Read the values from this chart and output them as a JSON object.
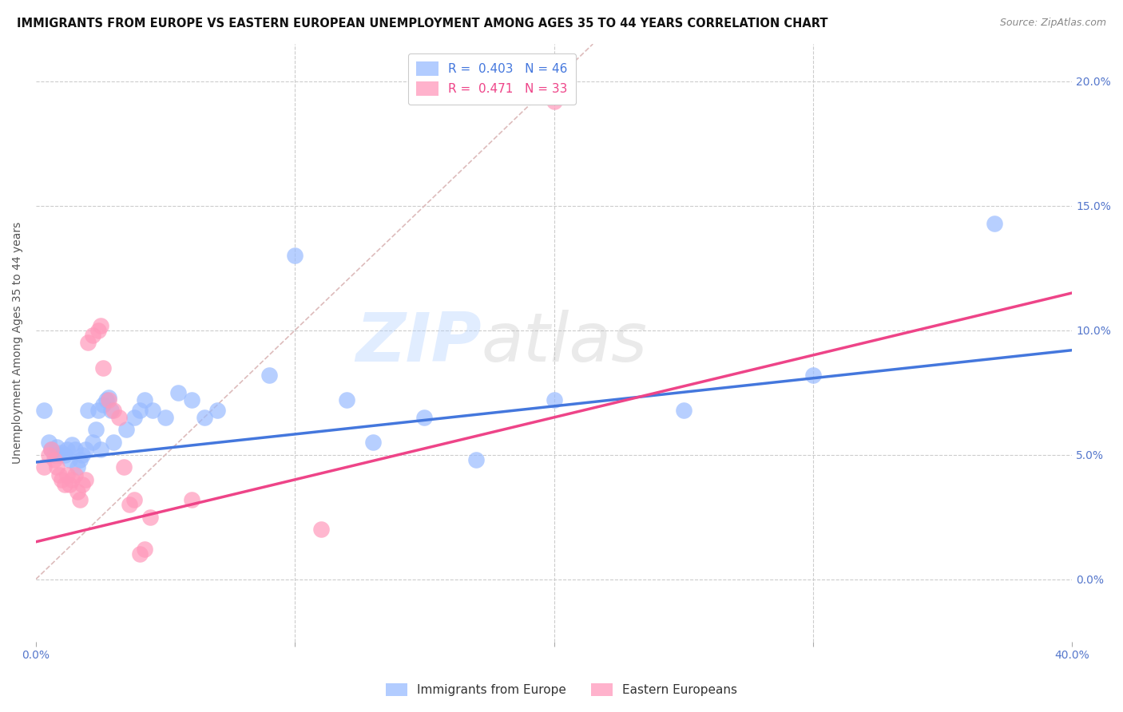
{
  "title": "IMMIGRANTS FROM EUROPE VS EASTERN EUROPEAN UNEMPLOYMENT AMONG AGES 35 TO 44 YEARS CORRELATION CHART",
  "source": "Source: ZipAtlas.com",
  "ylabel": "Unemployment Among Ages 35 to 44 years",
  "xlim": [
    0.0,
    0.4
  ],
  "ylim": [
    -0.025,
    0.215
  ],
  "yticks": [
    0.0,
    0.05,
    0.1,
    0.15,
    0.2
  ],
  "ytick_labels": [
    "0.0%",
    "5.0%",
    "10.0%",
    "15.0%",
    "20.0%"
  ],
  "xticks": [
    0.0,
    0.1,
    0.2,
    0.3,
    0.4
  ],
  "xtick_labels": [
    "0.0%",
    "",
    "",
    "",
    "40.0%"
  ],
  "blue_R": 0.403,
  "blue_N": 46,
  "pink_R": 0.471,
  "pink_N": 33,
  "blue_color": "#99BBFF",
  "pink_color": "#FF99BB",
  "blue_line_color": "#4477DD",
  "pink_line_color": "#EE4488",
  "blue_scatter": [
    [
      0.003,
      0.068
    ],
    [
      0.005,
      0.055
    ],
    [
      0.006,
      0.052
    ],
    [
      0.007,
      0.05
    ],
    [
      0.008,
      0.053
    ],
    [
      0.009,
      0.05
    ],
    [
      0.01,
      0.051
    ],
    [
      0.011,
      0.05
    ],
    [
      0.012,
      0.052
    ],
    [
      0.013,
      0.048
    ],
    [
      0.014,
      0.054
    ],
    [
      0.015,
      0.052
    ],
    [
      0.016,
      0.045
    ],
    [
      0.017,
      0.048
    ],
    [
      0.018,
      0.05
    ],
    [
      0.019,
      0.052
    ],
    [
      0.02,
      0.068
    ],
    [
      0.022,
      0.055
    ],
    [
      0.023,
      0.06
    ],
    [
      0.024,
      0.068
    ],
    [
      0.025,
      0.052
    ],
    [
      0.026,
      0.07
    ],
    [
      0.027,
      0.072
    ],
    [
      0.028,
      0.073
    ],
    [
      0.029,
      0.068
    ],
    [
      0.03,
      0.055
    ],
    [
      0.035,
      0.06
    ],
    [
      0.038,
      0.065
    ],
    [
      0.04,
      0.068
    ],
    [
      0.042,
      0.072
    ],
    [
      0.045,
      0.068
    ],
    [
      0.05,
      0.065
    ],
    [
      0.055,
      0.075
    ],
    [
      0.06,
      0.072
    ],
    [
      0.065,
      0.065
    ],
    [
      0.07,
      0.068
    ],
    [
      0.09,
      0.082
    ],
    [
      0.1,
      0.13
    ],
    [
      0.12,
      0.072
    ],
    [
      0.13,
      0.055
    ],
    [
      0.15,
      0.065
    ],
    [
      0.17,
      0.048
    ],
    [
      0.2,
      0.072
    ],
    [
      0.25,
      0.068
    ],
    [
      0.3,
      0.082
    ],
    [
      0.37,
      0.143
    ]
  ],
  "pink_scatter": [
    [
      0.003,
      0.045
    ],
    [
      0.005,
      0.05
    ],
    [
      0.006,
      0.052
    ],
    [
      0.007,
      0.048
    ],
    [
      0.008,
      0.045
    ],
    [
      0.009,
      0.042
    ],
    [
      0.01,
      0.04
    ],
    [
      0.011,
      0.038
    ],
    [
      0.012,
      0.042
    ],
    [
      0.013,
      0.038
    ],
    [
      0.014,
      0.04
    ],
    [
      0.015,
      0.042
    ],
    [
      0.016,
      0.035
    ],
    [
      0.017,
      0.032
    ],
    [
      0.018,
      0.038
    ],
    [
      0.019,
      0.04
    ],
    [
      0.02,
      0.095
    ],
    [
      0.022,
      0.098
    ],
    [
      0.024,
      0.1
    ],
    [
      0.025,
      0.102
    ],
    [
      0.026,
      0.085
    ],
    [
      0.028,
      0.072
    ],
    [
      0.03,
      0.068
    ],
    [
      0.032,
      0.065
    ],
    [
      0.034,
      0.045
    ],
    [
      0.036,
      0.03
    ],
    [
      0.038,
      0.032
    ],
    [
      0.04,
      0.01
    ],
    [
      0.042,
      0.012
    ],
    [
      0.044,
      0.025
    ],
    [
      0.06,
      0.032
    ],
    [
      0.2,
      0.192
    ],
    [
      0.11,
      0.02
    ]
  ],
  "blue_line_x": [
    0.0,
    0.4
  ],
  "blue_line_y": [
    0.047,
    0.092
  ],
  "pink_line_x": [
    0.0,
    0.4
  ],
  "pink_line_y": [
    0.015,
    0.115
  ],
  "diag_line_x": [
    0.0,
    0.215
  ],
  "diag_line_y": [
    0.0,
    0.215
  ],
  "watermark_zip": "ZIP",
  "watermark_atlas": "atlas",
  "background_color": "#FFFFFF",
  "grid_color": "#CCCCCC",
  "title_fontsize": 10.5,
  "source_fontsize": 9,
  "axis_label_fontsize": 10,
  "tick_fontsize": 10,
  "legend_fontsize": 11
}
